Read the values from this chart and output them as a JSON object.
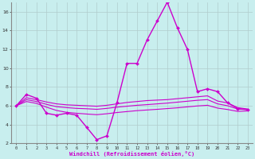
{
  "xlabel": "Windchill (Refroidissement éolien,°C)",
  "bg_color": "#c8eeee",
  "grid_color": "#b0cccc",
  "line_color": "#cc00cc",
  "xlim": [
    -0.5,
    23.5
  ],
  "ylim": [
    2,
    17
  ],
  "yticks": [
    2,
    4,
    6,
    8,
    10,
    12,
    14,
    16
  ],
  "xticks": [
    0,
    1,
    2,
    3,
    4,
    5,
    6,
    7,
    8,
    9,
    10,
    11,
    12,
    13,
    14,
    15,
    16,
    17,
    18,
    19,
    20,
    21,
    22,
    23
  ],
  "series": [
    {
      "x": [
        0,
        1,
        2,
        3,
        4,
        5,
        6,
        7,
        8,
        9,
        10,
        11,
        12,
        13,
        14,
        15,
        16,
        17,
        18,
        19,
        20,
        21,
        22,
        23
      ],
      "y": [
        6.0,
        7.2,
        6.8,
        5.2,
        5.0,
        5.2,
        5.0,
        3.7,
        2.4,
        2.8,
        6.3,
        10.5,
        10.5,
        13.0,
        15.0,
        17.0,
        14.3,
        12.0,
        7.5,
        7.8,
        7.5,
        6.3,
        5.7,
        5.6
      ],
      "marker": true,
      "linewidth": 1.0
    },
    {
      "x": [
        0,
        1,
        2,
        3,
        4,
        5,
        6,
        7,
        8,
        9,
        10,
        11,
        12,
        13,
        14,
        15,
        16,
        17,
        18,
        19,
        20,
        21,
        22,
        23
      ],
      "y": [
        6.0,
        6.85,
        6.65,
        6.4,
        6.2,
        6.1,
        6.05,
        6.0,
        5.95,
        6.05,
        6.2,
        6.35,
        6.45,
        6.55,
        6.6,
        6.65,
        6.75,
        6.85,
        6.95,
        7.05,
        6.5,
        6.3,
        5.8,
        5.65
      ],
      "marker": false,
      "linewidth": 0.8
    },
    {
      "x": [
        0,
        1,
        2,
        3,
        4,
        5,
        6,
        7,
        8,
        9,
        10,
        11,
        12,
        13,
        14,
        15,
        16,
        17,
        18,
        19,
        20,
        21,
        22,
        23
      ],
      "y": [
        6.0,
        6.65,
        6.45,
        6.15,
        5.9,
        5.8,
        5.72,
        5.68,
        5.62,
        5.72,
        5.85,
        5.95,
        6.05,
        6.12,
        6.2,
        6.28,
        6.38,
        6.48,
        6.58,
        6.65,
        6.2,
        6.0,
        5.65,
        5.58
      ],
      "marker": false,
      "linewidth": 0.8
    },
    {
      "x": [
        0,
        1,
        2,
        3,
        4,
        5,
        6,
        7,
        8,
        9,
        10,
        11,
        12,
        13,
        14,
        15,
        16,
        17,
        18,
        19,
        20,
        21,
        22,
        23
      ],
      "y": [
        6.0,
        6.45,
        6.25,
        5.85,
        5.5,
        5.3,
        5.2,
        5.12,
        5.05,
        5.15,
        5.28,
        5.38,
        5.48,
        5.55,
        5.62,
        5.7,
        5.78,
        5.88,
        5.98,
        6.05,
        5.75,
        5.6,
        5.4,
        5.45
      ],
      "marker": false,
      "linewidth": 0.8
    }
  ]
}
